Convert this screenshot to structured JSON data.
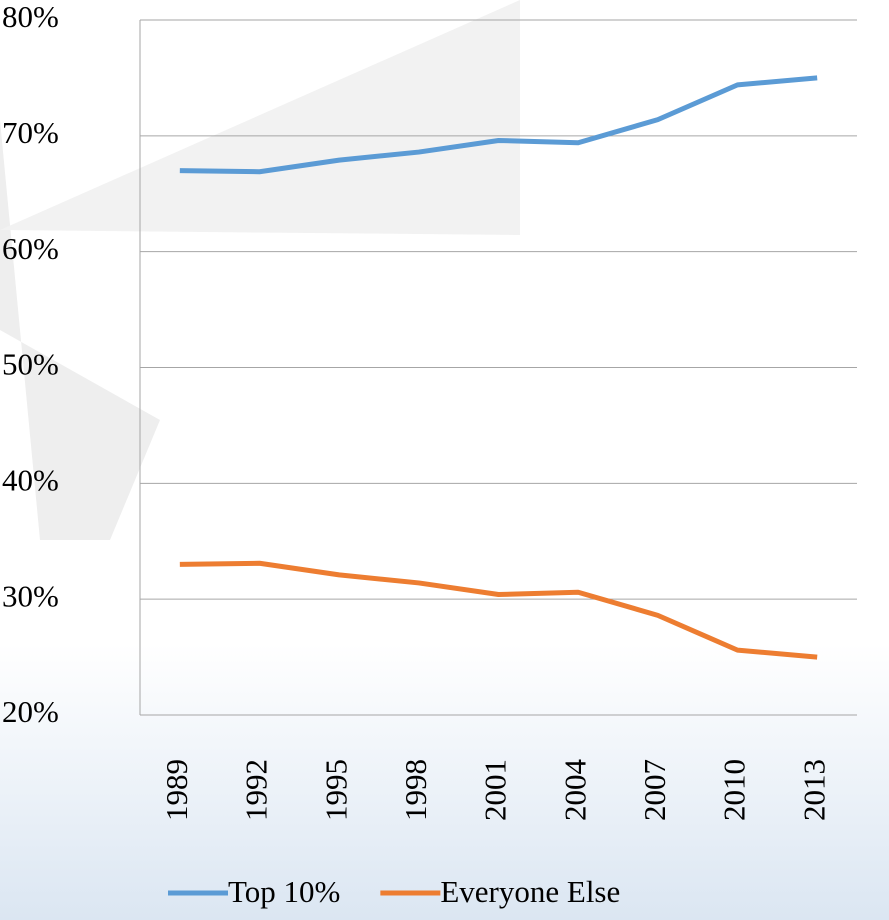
{
  "chart_data": {
    "type": "line",
    "categories": [
      "1989",
      "1992",
      "1995",
      "1998",
      "2001",
      "2004",
      "2007",
      "2010",
      "2013"
    ],
    "series": [
      {
        "name": "Top 10%",
        "color": "#5b9bd5",
        "values": [
          67.0,
          66.9,
          67.9,
          68.6,
          69.6,
          69.4,
          71.4,
          74.4,
          75.0
        ]
      },
      {
        "name": "Everyone Else",
        "color": "#ed7d31",
        "values": [
          33.0,
          33.1,
          32.1,
          31.4,
          30.4,
          30.6,
          28.6,
          25.6,
          25.0
        ]
      }
    ],
    "ylim": [
      20,
      80
    ],
    "yticks": [
      {
        "value": 20,
        "label": "20%"
      },
      {
        "value": 30,
        "label": "30%"
      },
      {
        "value": 40,
        "label": "40%"
      },
      {
        "value": 50,
        "label": "50%"
      },
      {
        "value": 60,
        "label": "60%"
      },
      {
        "value": 70,
        "label": "70%"
      },
      {
        "value": 80,
        "label": "80%"
      }
    ],
    "grid": true,
    "legend": "bottom"
  }
}
